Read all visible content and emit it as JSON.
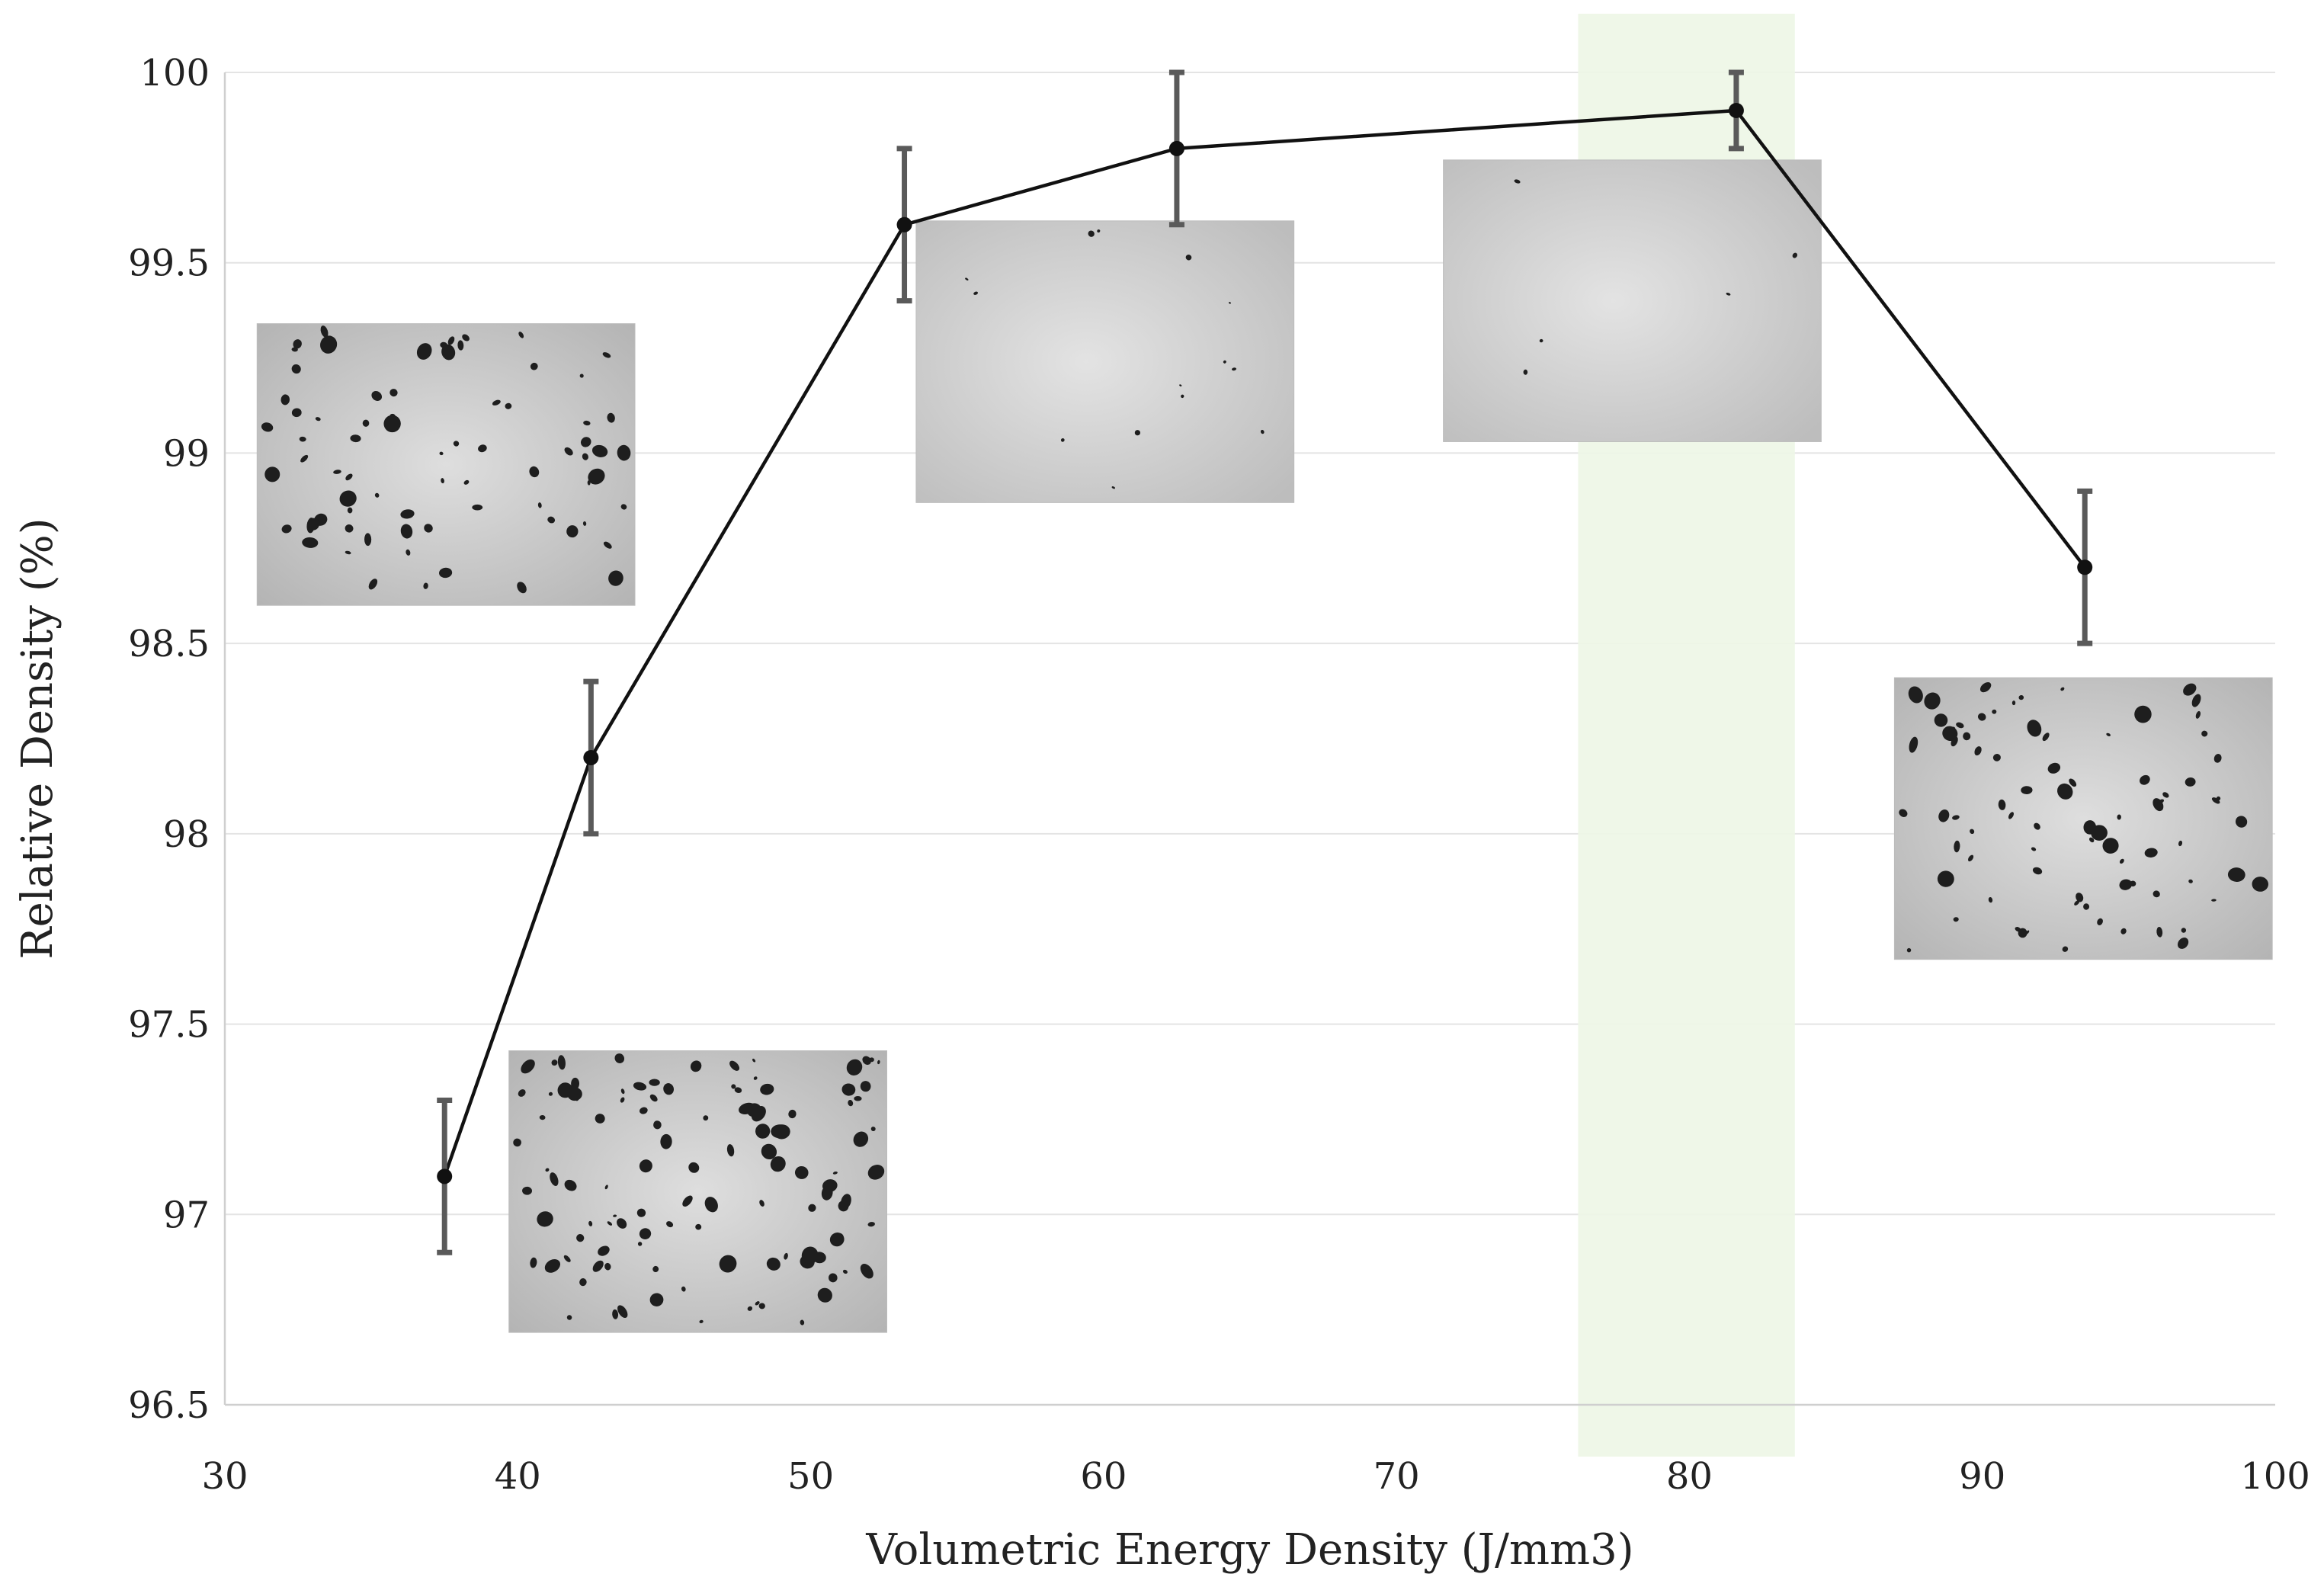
{
  "chart_data": {
    "type": "line",
    "xlabel": "Volumetric Energy Density (J/mm3)",
    "ylabel": "Relative Density (%)",
    "xlim": [
      30,
      100
    ],
    "ylim": [
      96.5,
      100
    ],
    "xticks": [
      "30",
      "40",
      "50",
      "60",
      "70",
      "80",
      "90",
      "100"
    ],
    "yticks": [
      "96.5",
      "97",
      "97.5",
      "98",
      "98.5",
      "99",
      "99.5",
      "100"
    ],
    "grid": true,
    "series": [
      {
        "name": "Relative Density",
        "x": [
          37.5,
          42.5,
          53.2,
          62.5,
          81.6,
          93.5
        ],
        "y": [
          97.1,
          98.2,
          99.6,
          99.8,
          99.9,
          98.7
        ],
        "error": [
          0.2,
          0.2,
          0.2,
          0.2,
          0.1,
          0.2
        ]
      }
    ],
    "highlight_band": {
      "x_range": [
        76.2,
        83.6
      ],
      "color": "#eef6e6"
    },
    "insets": [
      {
        "id": "micrograph-1",
        "porosity": "high"
      },
      {
        "id": "micrograph-2",
        "porosity": "high"
      },
      {
        "id": "micrograph-3",
        "porosity": "low"
      },
      {
        "id": "micrograph-4",
        "porosity": "very-low"
      },
      {
        "id": "micrograph-5",
        "porosity": "high"
      }
    ]
  }
}
